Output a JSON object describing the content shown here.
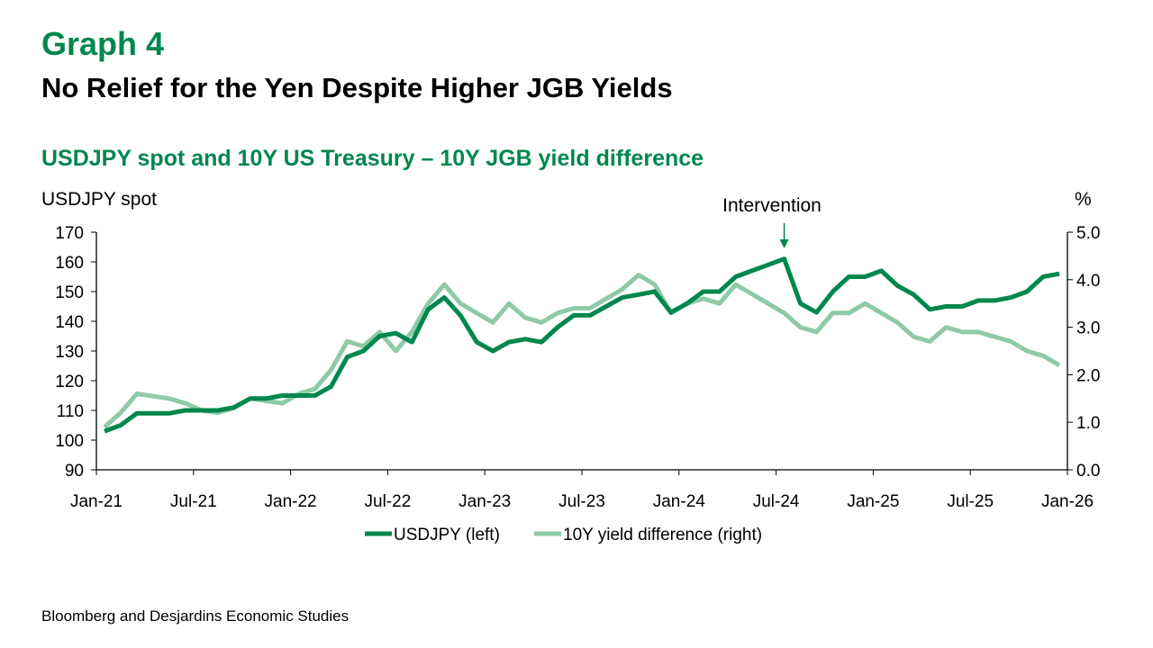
{
  "header": {
    "graph_label": "Graph 4",
    "title": "No Relief for the Yen Despite Higher JGB Yields",
    "subtitle": "USDJPY spot and 10Y US Treasury – 10Y JGB yield difference"
  },
  "source": "Bloomberg and Desjardins Economic Studies",
  "colors": {
    "usdjpy": "#00874e",
    "yield": "#8fcaa8",
    "accent": "#00874e"
  },
  "chart_data": {
    "type": "line",
    "title": "USDJPY spot and 10Y US Treasury – 10Y JGB yield difference",
    "ylabel_left": "USDJPY spot",
    "ylabel_right": "%",
    "ylim_left": [
      90,
      170
    ],
    "ylim_right": [
      0,
      5
    ],
    "yticks_left": [
      "90",
      "100",
      "110",
      "120",
      "130",
      "140",
      "150",
      "160",
      "170"
    ],
    "yticks_right": [
      "0.0",
      "1.0",
      "2.0",
      "3.0",
      "4.0",
      "5.0"
    ],
    "xticks": [
      "Jan-21",
      "Jul-21",
      "Jan-22",
      "Jul-22",
      "Jan-23",
      "Jul-23",
      "Jan-24",
      "Jul-24",
      "Jan-25",
      "Jul-25",
      "Jan-26"
    ],
    "x_start": "Jan-21",
    "x_unit": "month",
    "annotation": {
      "text": "Intervention",
      "month_index": 42
    },
    "series": [
      {
        "name": "USDJPY (left)",
        "axis": "left",
        "values": [
          103,
          105,
          109,
          109,
          109,
          110,
          110,
          110,
          111,
          114,
          114,
          115,
          115,
          115,
          118,
          128,
          130,
          135,
          136,
          133,
          144,
          148,
          142,
          133,
          130,
          133,
          134,
          133,
          138,
          142,
          142,
          145,
          148,
          149,
          150,
          143,
          146,
          150,
          150,
          155,
          157,
          159,
          161,
          146,
          143,
          150,
          155,
          155,
          157,
          152,
          149,
          144,
          145,
          145,
          147,
          147,
          148,
          150,
          155,
          156
        ]
      },
      {
        "name": "10Y yield difference (right)",
        "axis": "right",
        "values": [
          0.9,
          1.2,
          1.6,
          1.55,
          1.5,
          1.4,
          1.25,
          1.2,
          1.3,
          1.5,
          1.45,
          1.4,
          1.6,
          1.7,
          2.1,
          2.7,
          2.6,
          2.9,
          2.5,
          2.9,
          3.5,
          3.9,
          3.5,
          3.3,
          3.1,
          3.5,
          3.2,
          3.1,
          3.3,
          3.4,
          3.4,
          3.6,
          3.8,
          4.1,
          3.9,
          3.3,
          3.5,
          3.6,
          3.5,
          3.9,
          3.7,
          3.5,
          3.3,
          3.0,
          2.9,
          3.3,
          3.3,
          3.5,
          3.3,
          3.1,
          2.8,
          2.7,
          3.0,
          2.9,
          2.9,
          2.8,
          2.7,
          2.5,
          2.4,
          2.2
        ]
      }
    ]
  }
}
